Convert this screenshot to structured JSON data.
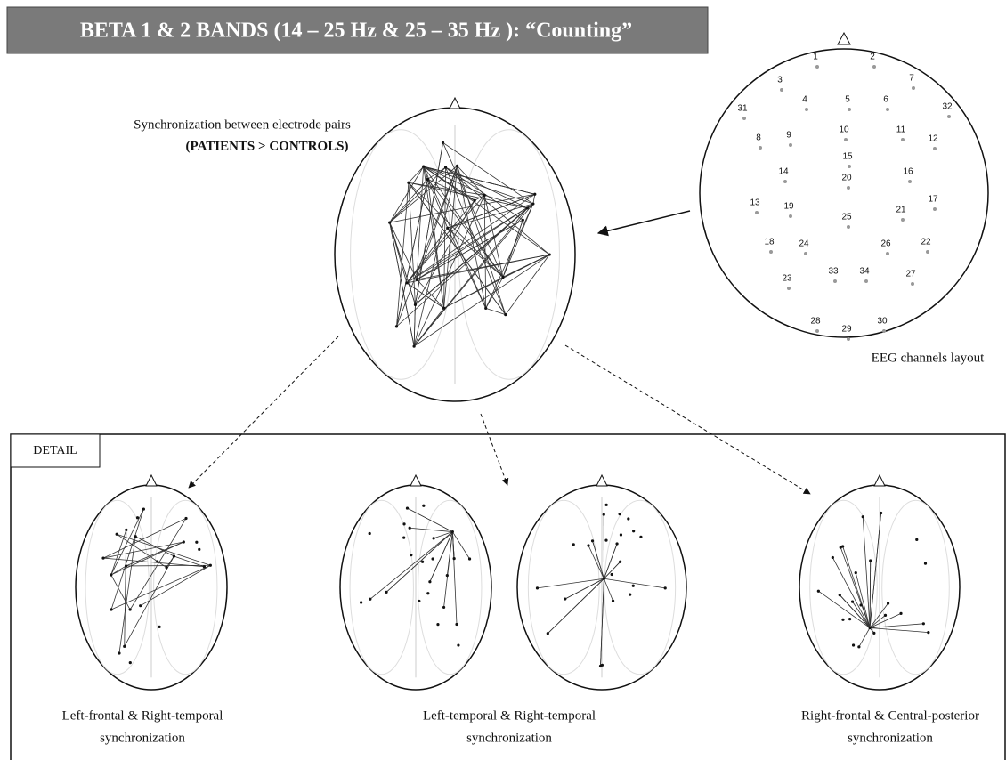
{
  "title": "BETA 1 & 2 BANDS (14 – 25 Hz & 25 – 35 Hz ): “Counting”",
  "center": {
    "caption": [
      "Synchronization between electrode pairs",
      "(PATIENTS > CONTROLS)"
    ]
  },
  "layout": {
    "caption": "EEG channels layout",
    "electrodes": [
      "1",
      "2",
      "3",
      "4",
      "5",
      "6",
      "7",
      "8",
      "9",
      "10",
      "11",
      "12",
      "13",
      "14",
      "15",
      "16",
      "17",
      "18",
      "19",
      "20",
      "21",
      "22",
      "23",
      "24",
      "25",
      "26",
      "27",
      "28",
      "29",
      "30",
      "31",
      "32",
      "33",
      "34"
    ]
  },
  "detail": {
    "label": "DETAIL",
    "panels": [
      {
        "caption": [
          "Left-frontal & Right-temporal",
          "synchronization"
        ]
      },
      {
        "caption": [
          "Left-temporal & Right-temporal",
          "synchronization"
        ]
      },
      {
        "caption": [
          "Right-frontal & Central-posterior",
          "synchronization"
        ]
      }
    ]
  }
}
